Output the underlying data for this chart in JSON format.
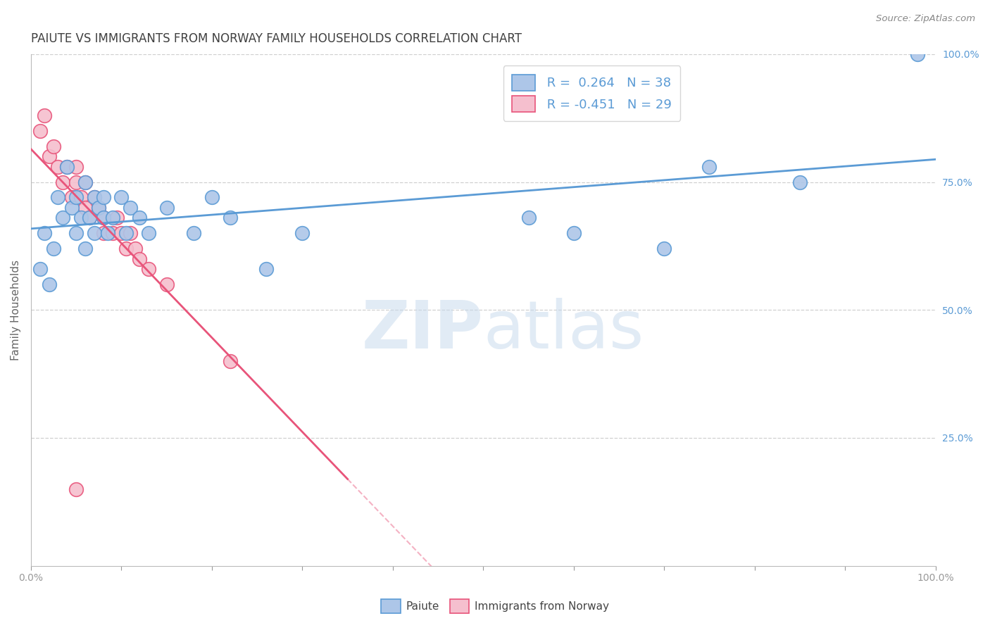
{
  "title": "PAIUTE VS IMMIGRANTS FROM NORWAY FAMILY HOUSEHOLDS CORRELATION CHART",
  "source": "Source: ZipAtlas.com",
  "ylabel": "Family Households",
  "legend_labels": [
    "Paiute",
    "Immigrants from Norway"
  ],
  "r_blue": 0.264,
  "n_blue": 38,
  "r_pink": -0.451,
  "n_pink": 29,
  "blue_color": "#adc6e8",
  "pink_color": "#f5bfce",
  "blue_line_color": "#5b9bd5",
  "pink_line_color": "#e8547a",
  "watermark_zip": "ZIP",
  "watermark_atlas": "atlas",
  "blue_points_x": [
    1.0,
    1.5,
    2.0,
    2.5,
    3.0,
    3.5,
    4.0,
    4.5,
    5.0,
    5.0,
    5.5,
    6.0,
    6.0,
    6.5,
    7.0,
    7.0,
    7.5,
    8.0,
    8.0,
    8.5,
    9.0,
    10.0,
    10.5,
    11.0,
    12.0,
    13.0,
    15.0,
    18.0,
    20.0,
    22.0,
    26.0,
    30.0,
    55.0,
    60.0,
    70.0,
    75.0,
    85.0,
    98.0
  ],
  "blue_points_y": [
    58.0,
    65.0,
    55.0,
    62.0,
    72.0,
    68.0,
    78.0,
    70.0,
    65.0,
    72.0,
    68.0,
    62.0,
    75.0,
    68.0,
    65.0,
    72.0,
    70.0,
    68.0,
    72.0,
    65.0,
    68.0,
    72.0,
    65.0,
    70.0,
    68.0,
    65.0,
    70.0,
    65.0,
    72.0,
    68.0,
    58.0,
    65.0,
    68.0,
    65.0,
    62.0,
    78.0,
    75.0,
    100.0
  ],
  "pink_points_x": [
    1.0,
    1.5,
    2.0,
    2.5,
    3.0,
    3.5,
    4.0,
    4.5,
    5.0,
    5.0,
    5.5,
    6.0,
    6.0,
    6.5,
    7.0,
    7.5,
    8.0,
    8.0,
    9.0,
    9.5,
    10.0,
    10.5,
    11.0,
    11.5,
    12.0,
    13.0,
    15.0,
    22.0,
    5.0
  ],
  "pink_points_y": [
    85.0,
    88.0,
    80.0,
    82.0,
    78.0,
    75.0,
    78.0,
    72.0,
    75.0,
    78.0,
    72.0,
    75.0,
    70.0,
    68.0,
    72.0,
    70.0,
    68.0,
    65.0,
    65.0,
    68.0,
    65.0,
    62.0,
    65.0,
    62.0,
    60.0,
    58.0,
    55.0,
    40.0,
    15.0
  ],
  "xlim": [
    0,
    100
  ],
  "ylim": [
    0,
    100
  ],
  "ytick_values": [
    25,
    50,
    75,
    100
  ],
  "ytick_labels": [
    "25.0%",
    "50.0%",
    "75.0%",
    "100.0%"
  ],
  "xtick_values": [
    0,
    10,
    20,
    30,
    40,
    50,
    60,
    70,
    80,
    90,
    100
  ],
  "background_color": "#ffffff",
  "grid_color": "#d0d0d0",
  "title_color": "#404040",
  "axis_label_color": "#666666",
  "right_axis_color": "#5b9bd5",
  "tick_color": "#999999",
  "pink_solid_end": 35,
  "legend_box_color": "#ffffff",
  "legend_edge_color": "#cccccc"
}
